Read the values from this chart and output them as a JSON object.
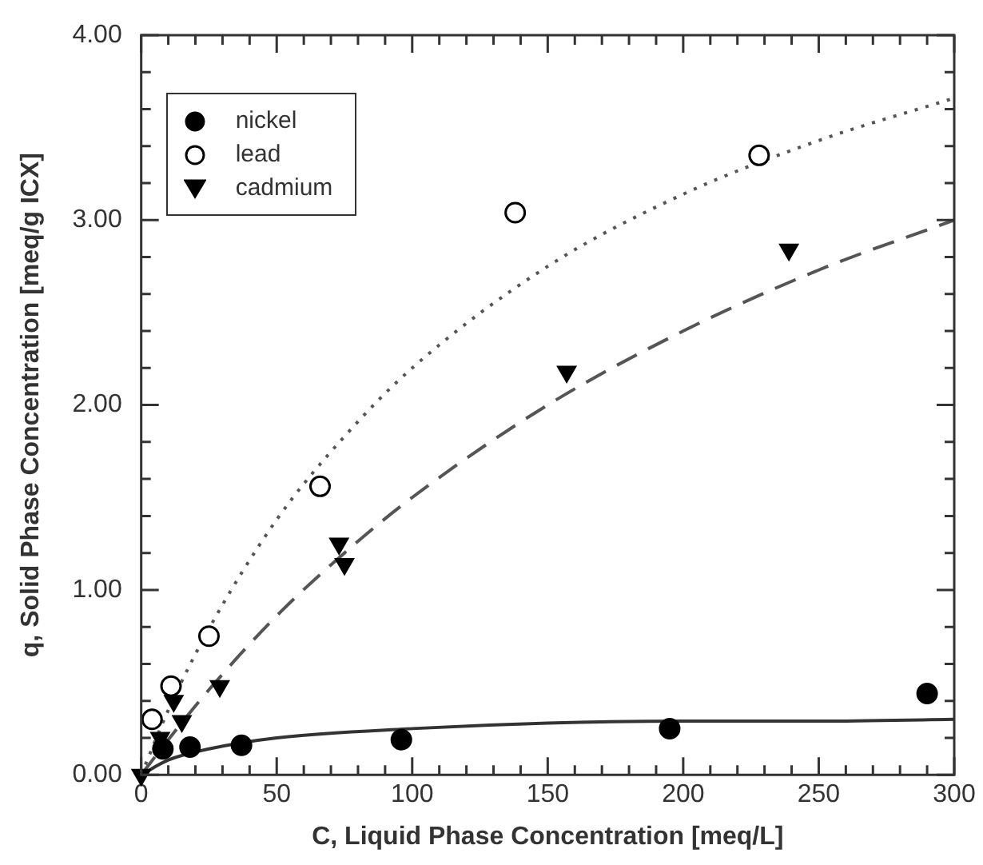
{
  "chart_data": {
    "type": "scatter",
    "xlabel": "C, Liquid Phase Concentration [meq/L]",
    "ylabel": "q, Solid Phase Concentration [meq/g ICX]",
    "xlim": [
      0,
      300
    ],
    "ylim": [
      0,
      4
    ],
    "xticks": [
      0,
      {
        "value": 10,
        "label": null
      },
      {
        "value": 20,
        "label": null
      },
      {
        "value": 30,
        "label": null
      },
      {
        "value": 40,
        "label": null
      },
      50,
      {
        "value": 60,
        "label": null
      },
      {
        "value": 70,
        "label": null
      },
      {
        "value": 80,
        "label": null
      },
      {
        "value": 90,
        "label": null
      },
      100,
      {
        "value": 110,
        "label": null
      },
      {
        "value": 120,
        "label": null
      },
      {
        "value": 130,
        "label": null
      },
      {
        "value": 140,
        "label": null
      },
      150,
      {
        "value": 160,
        "label": null
      },
      {
        "value": 170,
        "label": null
      },
      {
        "value": 180,
        "label": null
      },
      {
        "value": 190,
        "label": null
      },
      200,
      {
        "value": 210,
        "label": null
      },
      {
        "value": 220,
        "label": null
      },
      {
        "value": 230,
        "label": null
      },
      {
        "value": 240,
        "label": null
      },
      250,
      {
        "value": 260,
        "label": null
      },
      {
        "value": 270,
        "label": null
      },
      {
        "value": 280,
        "label": null
      },
      {
        "value": 290,
        "label": null
      },
      300
    ],
    "yticks": [
      {
        "value": 0,
        "label": "0.00"
      },
      {
        "value": 0.2,
        "label": null
      },
      {
        "value": 0.4,
        "label": null
      },
      {
        "value": 0.6,
        "label": null
      },
      {
        "value": 0.8,
        "label": null
      },
      {
        "value": 1,
        "label": "1.00"
      },
      {
        "value": 1.2,
        "label": null
      },
      {
        "value": 1.4,
        "label": null
      },
      {
        "value": 1.6,
        "label": null
      },
      {
        "value": 1.8,
        "label": null
      },
      {
        "value": 2,
        "label": "2.00"
      },
      {
        "value": 2.2,
        "label": null
      },
      {
        "value": 2.4,
        "label": null
      },
      {
        "value": 2.6,
        "label": null
      },
      {
        "value": 2.8,
        "label": null
      },
      {
        "value": 3,
        "label": "3.00"
      },
      {
        "value": 3.2,
        "label": null
      },
      {
        "value": 3.4,
        "label": null
      },
      {
        "value": 3.6,
        "label": null
      },
      {
        "value": 3.8,
        "label": null
      },
      {
        "value": 4,
        "label": "4.00"
      }
    ],
    "grid": false,
    "legend": "top left",
    "series": [
      {
        "name": "nickel",
        "marker": "circle",
        "color": "#000000",
        "x": [
          8,
          18,
          37,
          96,
          195,
          290
        ],
        "values": [
          0.14,
          0.15,
          0.16,
          0.19,
          0.25,
          0.44
        ]
      },
      {
        "name": "lead",
        "marker": "circle",
        "color": "#ffffff",
        "x": [
          4,
          11,
          25,
          66,
          138,
          228
        ],
        "values": [
          0.3,
          0.48,
          0.75,
          1.56,
          3.04,
          3.35
        ]
      },
      {
        "name": "cadmium",
        "marker": "triangle",
        "color": "#000000",
        "x": [
          0,
          7,
          12,
          15,
          29,
          73,
          75,
          157,
          239
        ],
        "values": [
          0,
          0.2,
          0.4,
          0.29,
          0.48,
          1.25,
          1.14,
          2.18,
          2.84
        ]
      },
      {
        "type": "line",
        "marker": "none",
        "line_style": "solid",
        "color": "#333333",
        "x": [
          0,
          10,
          25,
          50,
          100,
          150,
          200,
          250,
          300
        ],
        "values": [
          0,
          0.08,
          0.14,
          0.2,
          0.25,
          0.28,
          0.29,
          0.29,
          0.3
        ]
      },
      {
        "type": "line",
        "marker": "none",
        "line_style": "dotted",
        "color": "#555555",
        "x": [
          0,
          10,
          25,
          50,
          75,
          100,
          150,
          200,
          250,
          300
        ],
        "values": [
          0,
          0.35,
          0.79,
          1.38,
          1.83,
          2.2,
          2.75,
          3.14,
          3.43,
          3.66
        ]
      },
      {
        "type": "line",
        "marker": "none",
        "line_style": "dashed",
        "color": "#555555",
        "x": [
          0,
          10,
          25,
          50,
          75,
          100,
          150,
          200,
          250,
          300
        ],
        "values": [
          0,
          0.19,
          0.46,
          0.86,
          1.2,
          1.5,
          2.0,
          2.4,
          2.73,
          3.0
        ]
      }
    ]
  }
}
